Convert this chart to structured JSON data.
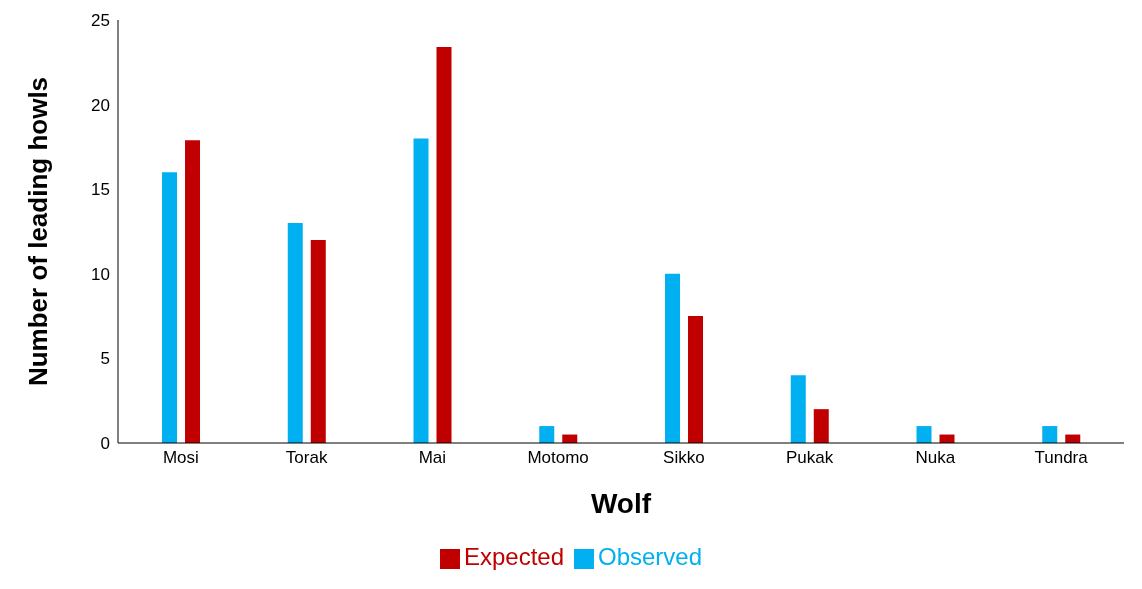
{
  "chart_data": {
    "type": "bar",
    "xlabel": "Wolf",
    "ylabel": "Number of leading howls",
    "categories": [
      "Mosi",
      "Torak",
      "Mai",
      "Motomo",
      "Sikko",
      "Pukak",
      "Nuka",
      "Tundra"
    ],
    "series": [
      {
        "name": "Observed",
        "color": "#00b0f0",
        "values": [
          16,
          13,
          18,
          1,
          10,
          4,
          1,
          1
        ]
      },
      {
        "name": "Expected",
        "color": "#c00000",
        "values": [
          17.9,
          12,
          23.4,
          0.5,
          7.5,
          2,
          0.5,
          0.5
        ]
      }
    ],
    "ylim": [
      0,
      25
    ],
    "yticks": [
      0,
      5,
      10,
      15,
      20,
      25
    ],
    "grid": false,
    "legend": "bottom"
  }
}
